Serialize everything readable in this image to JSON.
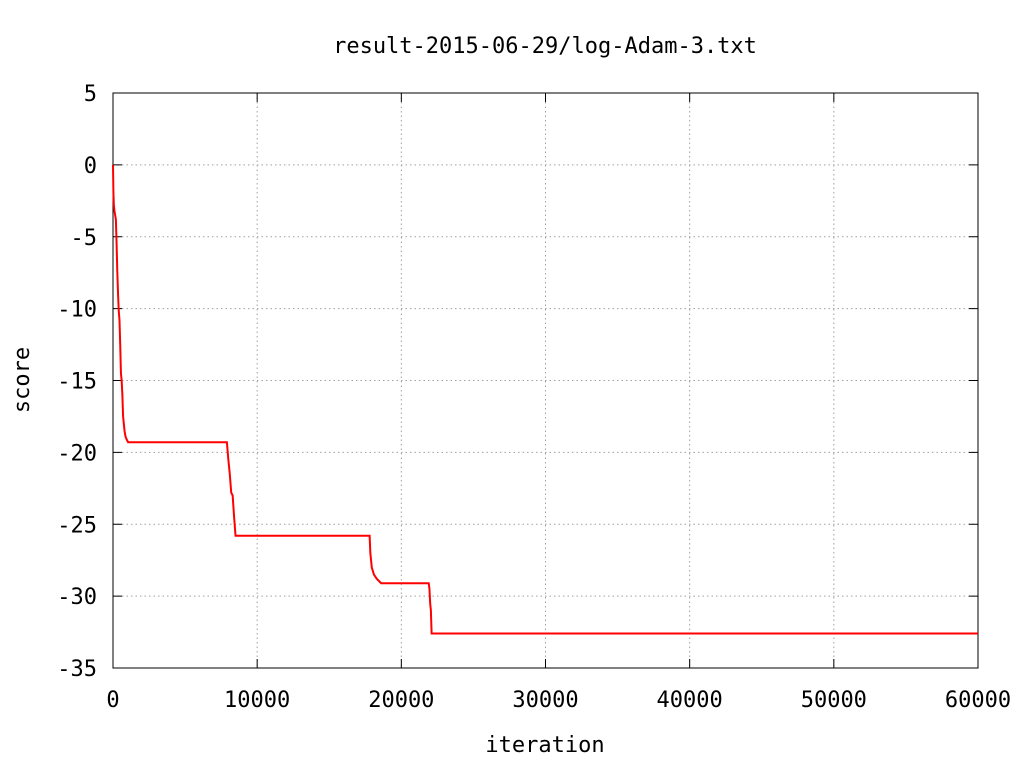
{
  "chart_data": {
    "type": "line",
    "title": "result-2015-06-29/log-Adam-3.txt",
    "xlabel": "iteration",
    "ylabel": "score",
    "xlim": [
      0,
      60000
    ],
    "ylim": [
      -35,
      5
    ],
    "grid": true,
    "x_ticks": [
      0,
      10000,
      20000,
      30000,
      40000,
      50000,
      60000
    ],
    "x_tick_labels": [
      "0",
      "10000",
      "20000",
      "30000",
      "40000",
      "50000",
      "60000"
    ],
    "y_ticks": [
      5,
      0,
      -5,
      -10,
      -15,
      -20,
      -25,
      -30,
      -35
    ],
    "y_tick_labels": [
      "5",
      "0",
      "-5",
      "-10",
      "-15",
      "-20",
      "-25",
      "-30",
      "-35"
    ],
    "series": [
      {
        "color": "#ff0000",
        "x": [
          0,
          30,
          60,
          100,
          150,
          200,
          250,
          300,
          350,
          400,
          450,
          500,
          550,
          600,
          650,
          700,
          750,
          800,
          850,
          900,
          950,
          1000,
          1050,
          1100,
          1150,
          1200,
          1300,
          7900,
          8000,
          8100,
          8200,
          8300,
          8400,
          8500,
          17800,
          17850,
          17950,
          18100,
          18300,
          18600,
          21900,
          21950,
          22000,
          22050,
          22100,
          60000
        ],
        "y": [
          0,
          -2.0,
          -2.8,
          -3.2,
          -3.5,
          -3.8,
          -5.5,
          -7.5,
          -9.0,
          -10.2,
          -10.8,
          -12.5,
          -14.5,
          -15.0,
          -16.0,
          -17.5,
          -18.0,
          -18.5,
          -18.8,
          -19.0,
          -19.1,
          -19.2,
          -19.3,
          -19.3,
          -19.3,
          -19.3,
          -19.3,
          -19.3,
          -20.5,
          -21.5,
          -22.8,
          -23.0,
          -24.5,
          -25.8,
          -25.8,
          -27.0,
          -28.0,
          -28.5,
          -28.8,
          -29.1,
          -29.1,
          -29.5,
          -30.5,
          -31.0,
          -32.6,
          -32.6
        ]
      }
    ]
  }
}
